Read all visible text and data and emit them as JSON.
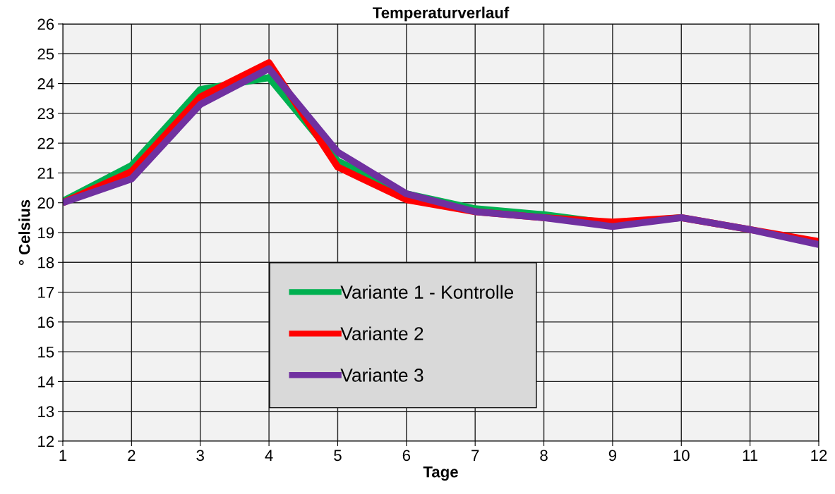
{
  "chart_data": {
    "type": "line",
    "title": "Temperaturverlauf",
    "xlabel": "Tage",
    "ylabel": "° Celsius",
    "x": [
      1,
      2,
      3,
      4,
      5,
      6,
      7,
      8,
      9,
      10,
      11,
      12
    ],
    "xlim": [
      1,
      12
    ],
    "xticks": [
      1,
      2,
      3,
      4,
      5,
      6,
      7,
      8,
      9,
      10,
      11,
      12
    ],
    "ylim": [
      12,
      26
    ],
    "yticks": [
      12,
      13,
      14,
      15,
      16,
      17,
      18,
      19,
      20,
      21,
      22,
      23,
      24,
      25,
      26
    ],
    "grid": true,
    "legend": "bottom",
    "marker": "none",
    "line_style": "solid",
    "series": [
      {
        "name": "Variante 1 - Kontrolle",
        "color": "#00b050",
        "values": [
          20.05,
          21.25,
          23.8,
          24.2,
          21.4,
          20.3,
          19.8,
          19.6,
          19.3,
          19.5,
          null,
          null
        ]
      },
      {
        "name": "Variante 2",
        "color": "#ff0000",
        "values": [
          20.0,
          21.05,
          23.55,
          24.7,
          21.2,
          20.1,
          19.7,
          19.5,
          19.35,
          19.5,
          19.1,
          18.7
        ]
      },
      {
        "name": "Variante 3",
        "color": "#7030a0",
        "values": [
          20.0,
          20.8,
          23.3,
          24.5,
          21.7,
          20.3,
          19.7,
          19.5,
          19.2,
          19.5,
          19.1,
          18.6
        ]
      }
    ]
  }
}
